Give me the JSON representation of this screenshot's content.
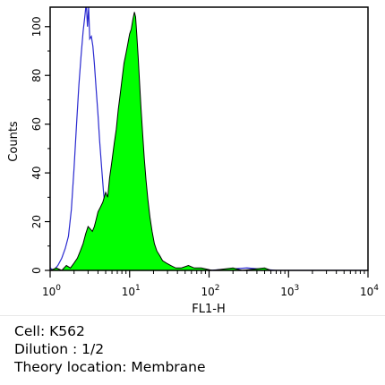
{
  "chart_data": {
    "type": "area",
    "xlabel": "FL1-H",
    "ylabel": "Counts",
    "xscale": "log",
    "xlim": [
      1,
      10000
    ],
    "ylim": [
      0,
      108
    ],
    "x_ticks": [
      {
        "base": "10",
        "exp": "0"
      },
      {
        "base": "10",
        "exp": "1"
      },
      {
        "base": "10",
        "exp": "2"
      },
      {
        "base": "10",
        "exp": "3"
      },
      {
        "base": "10",
        "exp": "4"
      }
    ],
    "y_ticks": [
      0,
      20,
      40,
      60,
      80,
      100
    ],
    "grid": false,
    "series": [
      {
        "style": "outline",
        "color": "#2a2ad0",
        "points": [
          [
            1.0,
            1
          ],
          [
            1.1,
            0
          ],
          [
            1.25,
            2
          ],
          [
            1.4,
            5
          ],
          [
            1.55,
            9
          ],
          [
            1.7,
            14
          ],
          [
            1.85,
            25
          ],
          [
            2.0,
            42
          ],
          [
            2.15,
            60
          ],
          [
            2.3,
            76
          ],
          [
            2.45,
            88
          ],
          [
            2.6,
            98
          ],
          [
            2.75,
            105
          ],
          [
            2.85,
            110
          ],
          [
            2.95,
            100
          ],
          [
            3.05,
            108
          ],
          [
            3.15,
            95
          ],
          [
            3.3,
            96
          ],
          [
            3.45,
            92
          ],
          [
            3.6,
            85
          ],
          [
            3.8,
            74
          ],
          [
            4.0,
            64
          ],
          [
            4.2,
            53
          ],
          [
            4.45,
            42
          ],
          [
            4.7,
            32
          ],
          [
            5.0,
            24
          ],
          [
            5.3,
            17
          ],
          [
            5.7,
            11
          ],
          [
            6.2,
            7
          ],
          [
            6.8,
            4
          ],
          [
            7.5,
            3
          ],
          [
            8.5,
            2
          ],
          [
            10,
            1
          ],
          [
            12,
            0
          ],
          [
            15,
            0
          ],
          [
            20,
            0
          ],
          [
            40,
            0
          ],
          [
            100,
            0
          ],
          [
            300,
            1
          ],
          [
            700,
            0
          ],
          [
            10000,
            0
          ]
        ]
      },
      {
        "style": "filled",
        "color": "#00ff00",
        "points": [
          [
            1.0,
            0
          ],
          [
            1.2,
            1
          ],
          [
            1.4,
            0
          ],
          [
            1.6,
            2
          ],
          [
            1.8,
            1
          ],
          [
            2.0,
            3
          ],
          [
            2.2,
            5
          ],
          [
            2.4,
            8
          ],
          [
            2.6,
            11
          ],
          [
            2.8,
            15
          ],
          [
            3.0,
            18
          ],
          [
            3.2,
            17
          ],
          [
            3.4,
            16
          ],
          [
            3.6,
            18
          ],
          [
            3.8,
            21
          ],
          [
            4.0,
            24
          ],
          [
            4.3,
            26
          ],
          [
            4.6,
            28
          ],
          [
            5.0,
            32
          ],
          [
            5.3,
            30
          ],
          [
            5.6,
            38
          ],
          [
            6.0,
            45
          ],
          [
            6.4,
            52
          ],
          [
            6.8,
            58
          ],
          [
            7.2,
            66
          ],
          [
            7.6,
            72
          ],
          [
            8.0,
            78
          ],
          [
            8.5,
            85
          ],
          [
            9.0,
            89
          ],
          [
            9.5,
            93
          ],
          [
            10.0,
            97
          ],
          [
            10.5,
            99
          ],
          [
            11.0,
            103
          ],
          [
            11.5,
            106
          ],
          [
            11.9,
            104
          ],
          [
            12.3,
            97
          ],
          [
            12.8,
            88
          ],
          [
            13.3,
            78
          ],
          [
            13.9,
            67
          ],
          [
            14.6,
            56
          ],
          [
            15.3,
            46
          ],
          [
            16.1,
            37
          ],
          [
            17.0,
            29
          ],
          [
            18.0,
            22
          ],
          [
            19.2,
            16
          ],
          [
            20.5,
            11
          ],
          [
            22,
            8
          ],
          [
            24,
            6
          ],
          [
            26,
            4
          ],
          [
            29,
            3
          ],
          [
            33,
            2
          ],
          [
            38,
            1
          ],
          [
            45,
            1
          ],
          [
            55,
            2
          ],
          [
            65,
            1
          ],
          [
            80,
            1
          ],
          [
            110,
            0
          ],
          [
            200,
            1
          ],
          [
            260,
            0
          ],
          [
            500,
            1
          ],
          [
            600,
            0
          ],
          [
            10000,
            0
          ]
        ]
      }
    ]
  },
  "caption": {
    "line1": "Cell: K562",
    "line2": "Dilution : 1/2",
    "line3": "Theory location: Membrane"
  }
}
